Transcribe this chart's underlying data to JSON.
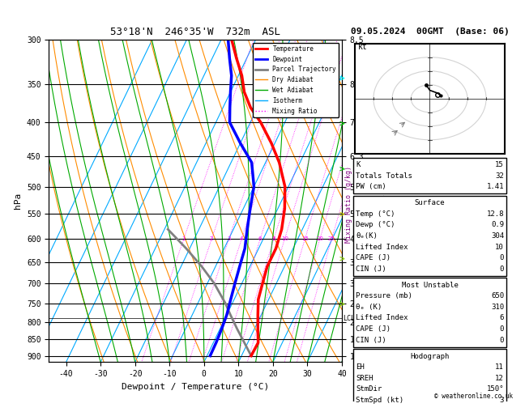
{
  "title_left": "53°18'N  246°35'W  732m  ASL",
  "title_right": "09.05.2024  00GMT  (Base: 06)",
  "xlabel": "Dewpoint / Temperature (°C)",
  "ylabel_left": "hPa",
  "pressure_levels": [
    300,
    350,
    400,
    450,
    500,
    550,
    600,
    650,
    700,
    750,
    800,
    850,
    900
  ],
  "x_range": [
    -45,
    40
  ],
  "temp_profile": {
    "pressure": [
      300,
      320,
      340,
      360,
      380,
      400,
      430,
      460,
      500,
      540,
      580,
      620,
      660,
      700,
      740,
      780,
      820,
      860,
      900
    ],
    "temp": [
      -37,
      -33,
      -29,
      -26,
      -22,
      -17,
      -11,
      -6,
      -1,
      2,
      4,
      5,
      5,
      6,
      7,
      9,
      11,
      13,
      12.8
    ]
  },
  "dewp_profile": {
    "pressure": [
      300,
      320,
      340,
      360,
      380,
      400,
      430,
      460,
      500,
      540,
      580,
      620,
      660,
      700,
      740,
      780,
      820,
      860,
      900
    ],
    "temp": [
      -38,
      -35,
      -32,
      -30,
      -28,
      -26,
      -20,
      -14,
      -10,
      -8,
      -6,
      -4,
      -3,
      -2,
      -1,
      0,
      0.5,
      0.8,
      0.9
    ]
  },
  "parcel_profile": {
    "pressure": [
      900,
      860,
      820,
      780,
      750,
      700,
      660,
      620,
      580
    ],
    "temp": [
      12.8,
      9,
      5,
      1,
      -2,
      -8,
      -14,
      -21,
      -29
    ]
  },
  "km_ticks": {
    "pressure": [
      300,
      350,
      400,
      450,
      500,
      550,
      600,
      650,
      700,
      750,
      800,
      850,
      900
    ],
    "km": [
      8.5,
      8.0,
      7.0,
      6.3,
      5.6,
      5.0,
      4.3,
      3.7,
      3.0,
      2.5,
      2.0,
      1.5,
      1.0
    ]
  },
  "lcl_pressure": 790,
  "mixing_ratio_labels": [
    1,
    2,
    3,
    4,
    6,
    8,
    10,
    15,
    20,
    25
  ],
  "stats": {
    "K": 15,
    "Totals_Totals": 32,
    "PW_cm": 1.41,
    "Surface_Temp": 12.8,
    "Surface_Dewp": 0.9,
    "theta_e_K": 304,
    "Lifted_Index": 10,
    "CAPE_J": 0,
    "CIN_J": 0,
    "MU_Pressure_mb": 650,
    "MU_theta_e_K": 310,
    "MU_Lifted_Index": 6,
    "MU_CAPE_J": 0,
    "MU_CIN_J": 0,
    "EH": 11,
    "SREH": 12,
    "StmDir": 150,
    "StmSpd_kt": 3
  },
  "colors": {
    "temperature": "#ff0000",
    "dewpoint": "#0000ff",
    "parcel": "#808080",
    "dry_adiabat": "#ff8c00",
    "wet_adiabat": "#00aa00",
    "isotherm": "#00aaff",
    "mixing_ratio": "#ff00ff",
    "background": "#ffffff",
    "grid": "#000000"
  }
}
